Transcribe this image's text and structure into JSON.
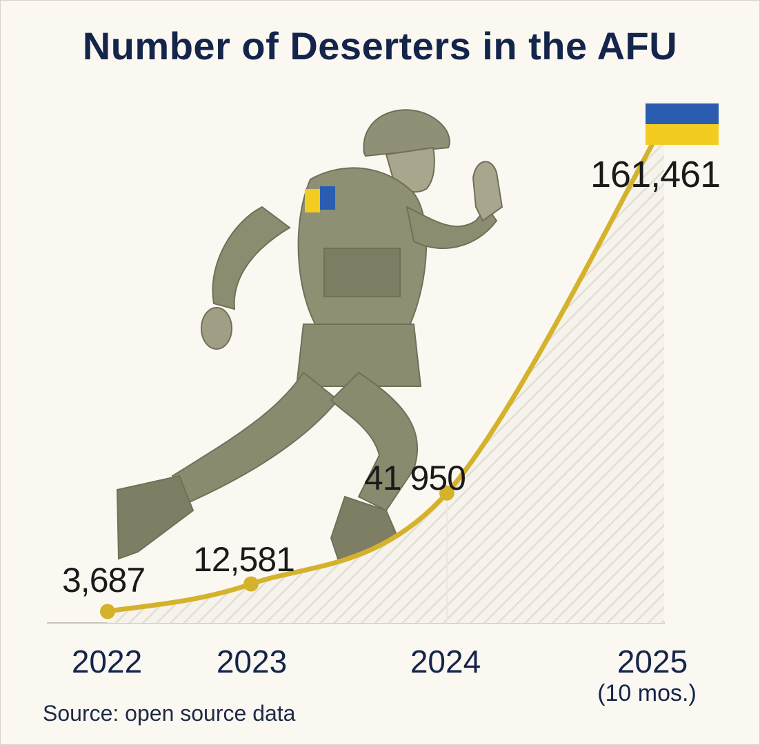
{
  "title": "Number of Deserters in the AFU",
  "source": "Source: open source data",
  "flag_colors": {
    "top": "#2a5db0",
    "bottom": "#f2cc21"
  },
  "accent_color": "#d4b22c",
  "illustration": "running-soldier",
  "chart_data": {
    "type": "line",
    "title": "Number of Deserters in the AFU",
    "categories": [
      "2022",
      "2023",
      "2024",
      "2025"
    ],
    "category_subs": [
      "",
      "",
      "",
      "(10 mos.)"
    ],
    "values": [
      3687,
      12581,
      41950,
      161461
    ],
    "value_labels": [
      "3,687",
      "12,581",
      "41 950",
      "161,461"
    ],
    "xlabel": "",
    "ylabel": "",
    "ylim": [
      0,
      170000
    ],
    "grid": false,
    "fill_under_line": "hatched"
  }
}
